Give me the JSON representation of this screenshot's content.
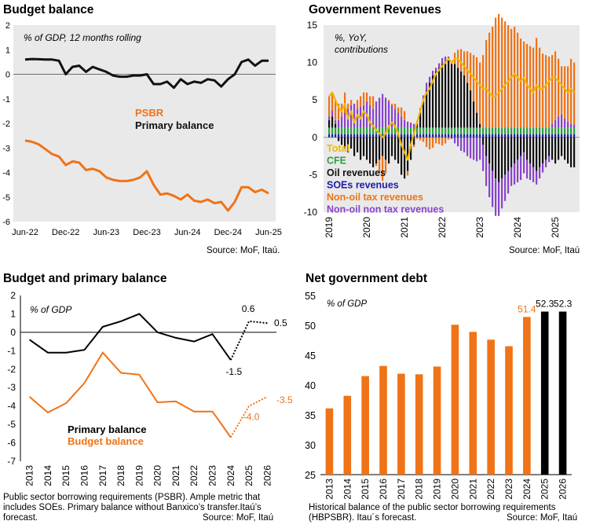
{
  "chart_data": [
    {
      "type": "line",
      "title": "Budget balance",
      "subtitle": "% of GDP, 12 months rolling",
      "source": "Source: MoF, Itaú.",
      "x_ticks": [
        "Jun-22",
        "Dec-22",
        "Jun-23",
        "Dec-23",
        "Jun-24",
        "Dec-24",
        "Jun-25"
      ],
      "ylim": [
        -6,
        2
      ],
      "y_ticks": [
        2,
        1,
        0,
        -1,
        -2,
        -3,
        -4,
        -5,
        -6
      ],
      "grid": false,
      "background": "#e9e9e9",
      "x": [
        "2022-06",
        "2022-07",
        "2022-08",
        "2022-09",
        "2022-10",
        "2022-11",
        "2022-12",
        "2023-01",
        "2023-02",
        "2023-03",
        "2023-04",
        "2023-05",
        "2023-06",
        "2023-07",
        "2023-08",
        "2023-09",
        "2023-10",
        "2023-11",
        "2023-12",
        "2024-01",
        "2024-02",
        "2024-03",
        "2024-04",
        "2024-05",
        "2024-06",
        "2024-07",
        "2024-08",
        "2024-09",
        "2024-10",
        "2024-11",
        "2024-12",
        "2025-01",
        "2025-02",
        "2025-03",
        "2025-04",
        "2025-05",
        "2025-06"
      ],
      "series": [
        {
          "name": "PSBR",
          "color": "#f07317",
          "values": [
            -2.7,
            -2.75,
            -2.85,
            -3.05,
            -3.25,
            -3.35,
            -3.7,
            -3.55,
            -3.6,
            -3.9,
            -3.85,
            -3.95,
            -4.2,
            -4.3,
            -4.35,
            -4.35,
            -4.3,
            -4.2,
            -3.95,
            -4.5,
            -4.9,
            -4.85,
            -4.95,
            -5.1,
            -4.9,
            -5.15,
            -5.2,
            -5.1,
            -5.25,
            -5.2,
            -5.55,
            -5.2,
            -4.6,
            -4.6,
            -4.8,
            -4.7,
            -4.85
          ]
        },
        {
          "name": "Primary balance",
          "color": "#111111",
          "values": [
            0.6,
            0.62,
            0.61,
            0.6,
            0.6,
            0.55,
            0.0,
            0.3,
            0.35,
            0.1,
            0.3,
            0.2,
            0.1,
            -0.05,
            -0.1,
            -0.1,
            -0.05,
            -0.05,
            0.0,
            -0.4,
            -0.4,
            -0.3,
            -0.55,
            -0.2,
            -0.4,
            -0.3,
            -0.35,
            -0.2,
            -0.25,
            -0.5,
            -0.2,
            0.0,
            0.5,
            0.6,
            0.35,
            0.55,
            0.55
          ]
        }
      ]
    },
    {
      "type": "bar",
      "title": "Government Revenues",
      "subtitle": "%, YoY,",
      "subtitle2": "contributions",
      "source": "Source: MoF, Itaú",
      "x_ticks": [
        "2019",
        "2020",
        "2021",
        "2022",
        "2023",
        "2024",
        "2025"
      ],
      "ylim": [
        -10,
        15
      ],
      "y_ticks": [
        15,
        10,
        5,
        0,
        -5,
        -10
      ],
      "background": "#e9e9e9",
      "months": 79,
      "series": [
        {
          "name": "Total",
          "color": "#f2b705"
        },
        {
          "name": "CFE",
          "color": "#2e9e40"
        },
        {
          "name": "Oil revenues",
          "color": "#111111"
        },
        {
          "name": "SOEs revenues",
          "color": "#1c1ca8"
        },
        {
          "name": "Non-oil tax revenues",
          "color": "#f07317"
        },
        {
          "name": "Non-oil non tax revenues",
          "color": "#8844cc"
        }
      ],
      "total": [
        5.5,
        6.0,
        5.0,
        4.0,
        3.5,
        4.5,
        2.5,
        3.5,
        2.0,
        3.0,
        2.5,
        3.5,
        3.0,
        2.0,
        1.5,
        1.0,
        0.5,
        0.0,
        0.5,
        1.5,
        2.0,
        1.5,
        0.5,
        -1.0,
        -2.0,
        -3.0,
        -1.0,
        0.5,
        2.0,
        3.5,
        5.0,
        6.0,
        6.5,
        7.5,
        8.5,
        9.0,
        9.5,
        10.0,
        10.5,
        10.0,
        10.5,
        10.5,
        10.0,
        9.5,
        9.0,
        8.5,
        8.0,
        7.5,
        7.0,
        6.5,
        6.5,
        6.0,
        5.5,
        5.5,
        6.0,
        6.5,
        7.0,
        7.5,
        8.0,
        8.5,
        8.0,
        7.5,
        8.0,
        7.0,
        6.5,
        6.0,
        7.0,
        6.5,
        6.5,
        7.0,
        7.5,
        8.0,
        8.0,
        7.5,
        7.0,
        6.5,
        6.0,
        6.5,
        6.0
      ],
      "oil": [
        1.0,
        1.5,
        0.5,
        -0.5,
        -1.0,
        -1.5,
        -2.0,
        -1.5,
        -2.5,
        -2.0,
        -3.0,
        -2.5,
        -3.0,
        -3.5,
        -4.0,
        -3.5,
        -3.0,
        -2.5,
        -3.0,
        -3.5,
        -2.5,
        -3.0,
        -3.5,
        -5.0,
        -5.5,
        -4.5,
        -3.0,
        -1.0,
        0.5,
        2.0,
        3.5,
        5.0,
        6.0,
        7.0,
        7.5,
        8.0,
        8.5,
        8.5,
        9.0,
        8.5,
        8.5,
        8.0,
        7.5,
        7.0,
        6.0,
        5.0,
        3.5,
        2.0,
        0.5,
        -1.0,
        -2.5,
        -3.5,
        -4.5,
        -5.5,
        -6.0,
        -5.5,
        -5.0,
        -4.5,
        -4.0,
        -3.5,
        -3.0,
        -2.5,
        -2.0,
        -3.0,
        -3.5,
        -4.0,
        -4.5,
        -4.0,
        -3.5,
        -3.0,
        -2.5,
        -3.0,
        -3.5,
        -3.0,
        -2.5,
        -3.0,
        -3.5,
        -4.0,
        -4.0
      ],
      "nontax": [
        0.5,
        0.8,
        0.5,
        1.0,
        1.5,
        2.0,
        2.5,
        3.0,
        3.2,
        2.5,
        2.8,
        3.0,
        3.5,
        3.0,
        2.5,
        3.5,
        4.0,
        4.5,
        4.0,
        3.5,
        3.0,
        2.5,
        2.0,
        1.5,
        1.0,
        0.8,
        0.6,
        0.5,
        0.4,
        0.6,
        0.8,
        1.0,
        0.8,
        0.6,
        0.5,
        0.6,
        0.8,
        1.0,
        0.5,
        -0.2,
        -0.8,
        -1.2,
        -1.8,
        -2.0,
        -2.5,
        -2.8,
        -3.0,
        -3.2,
        -3.0,
        -3.5,
        -4.0,
        -4.5,
        -4.8,
        -5.0,
        -4.5,
        -4.0,
        -3.5,
        -3.0,
        -2.5,
        -2.8,
        -3.0,
        -3.2,
        -2.8,
        -2.5,
        -2.2,
        -2.0,
        -1.8,
        -1.5,
        -1.2,
        -1.0,
        -0.8,
        0.5,
        1.0,
        1.5,
        1.8,
        1.2,
        0.8,
        0.5,
        0.4
      ]
    },
    {
      "type": "line",
      "title": "Budget and primary balance",
      "subtitle": "% of GDP",
      "note": "Public sector borrowing requirements (PSBR). Ample metric that includes SOEs. Primary balance without Banxico’s transfer.Itaú’s forecast.",
      "source": "Source: MoF, Itaú",
      "categories": [
        "2013",
        "2014",
        "2015",
        "2016",
        "2017",
        "2018",
        "2019",
        "2020",
        "2021",
        "2022",
        "2023",
        "2024",
        "2025",
        "2026"
      ],
      "ylim": [
        -7,
        2
      ],
      "y_ticks": [
        2,
        1,
        0,
        -1,
        -2,
        -3,
        -4,
        -5,
        -6,
        -7
      ],
      "forecast_from": "2024",
      "series": [
        {
          "name": "Primary balance",
          "color": "#000000",
          "values": [
            -0.4,
            -1.1,
            -1.1,
            -0.95,
            0.3,
            0.6,
            1.0,
            0.0,
            -0.3,
            -0.5,
            -0.1,
            -1.5,
            0.6,
            0.5
          ]
        },
        {
          "name": "Budget balance",
          "color": "#f07317",
          "values": [
            -3.5,
            -4.35,
            -3.85,
            -2.75,
            -1.1,
            -2.2,
            -2.3,
            -3.8,
            -3.75,
            -4.3,
            -4.3,
            -5.7,
            -4.0,
            -3.5
          ]
        }
      ],
      "labels": {
        "pb_2025": "0.6",
        "pb_2026": "0.5",
        "pb_2024": "-1.5",
        "bb_2026": "-3.5",
        "bb_2025": "-4.0"
      }
    },
    {
      "type": "bar",
      "title": "Net government debt",
      "subtitle": "% of GDP",
      "note": "Historical balance of the public sector borrowing requirements (HBPSBR). Itau´s forecast.",
      "source": "Source: MoF, Itaú",
      "categories": [
        "2013",
        "2014",
        "2015",
        "2016",
        "2017",
        "2018",
        "2019",
        "2020",
        "2021",
        "2022",
        "2023",
        "2024",
        "2025",
        "2026"
      ],
      "values": [
        36.1,
        38.2,
        41.5,
        43.2,
        41.9,
        41.8,
        43.1,
        50.1,
        48.9,
        47.6,
        46.5,
        51.4,
        52.3,
        52.3
      ],
      "forecast_from": "2025",
      "ylim": [
        25,
        55
      ],
      "y_ticks": [
        55,
        50,
        45,
        40,
        35,
        30,
        25
      ],
      "colors": {
        "actual": "#f07317",
        "forecast": "#000000"
      },
      "data_labels": {
        "2024": "51.4",
        "2025": "52.3",
        "2026": "52.3"
      }
    }
  ]
}
